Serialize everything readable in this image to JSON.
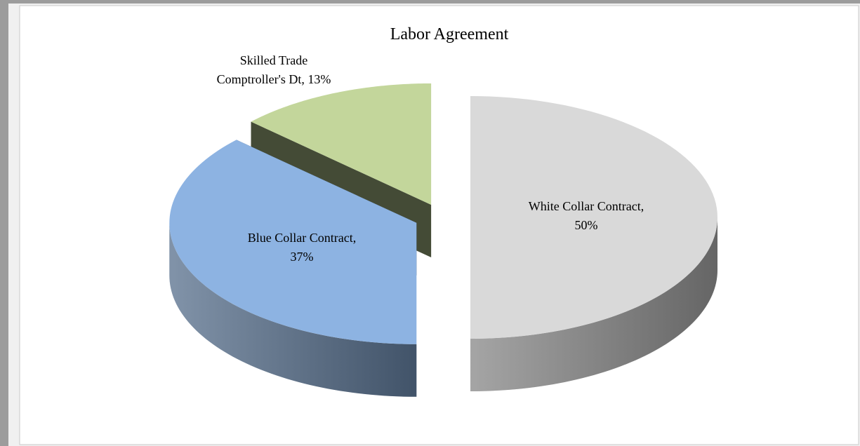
{
  "chart_data": {
    "type": "pie",
    "title": "Labor Agreement",
    "values": [
      50,
      37,
      13
    ],
    "data_labels": [
      [
        "White Collar Contract,",
        "50%"
      ],
      [
        "Blue Collar Contract,",
        "37%"
      ],
      [
        "Skilled Trade",
        "Comptroller's Dt, 13%"
      ]
    ],
    "colors": [
      "#d9d9d9",
      "#8db3e2",
      "#c3d69b"
    ]
  }
}
